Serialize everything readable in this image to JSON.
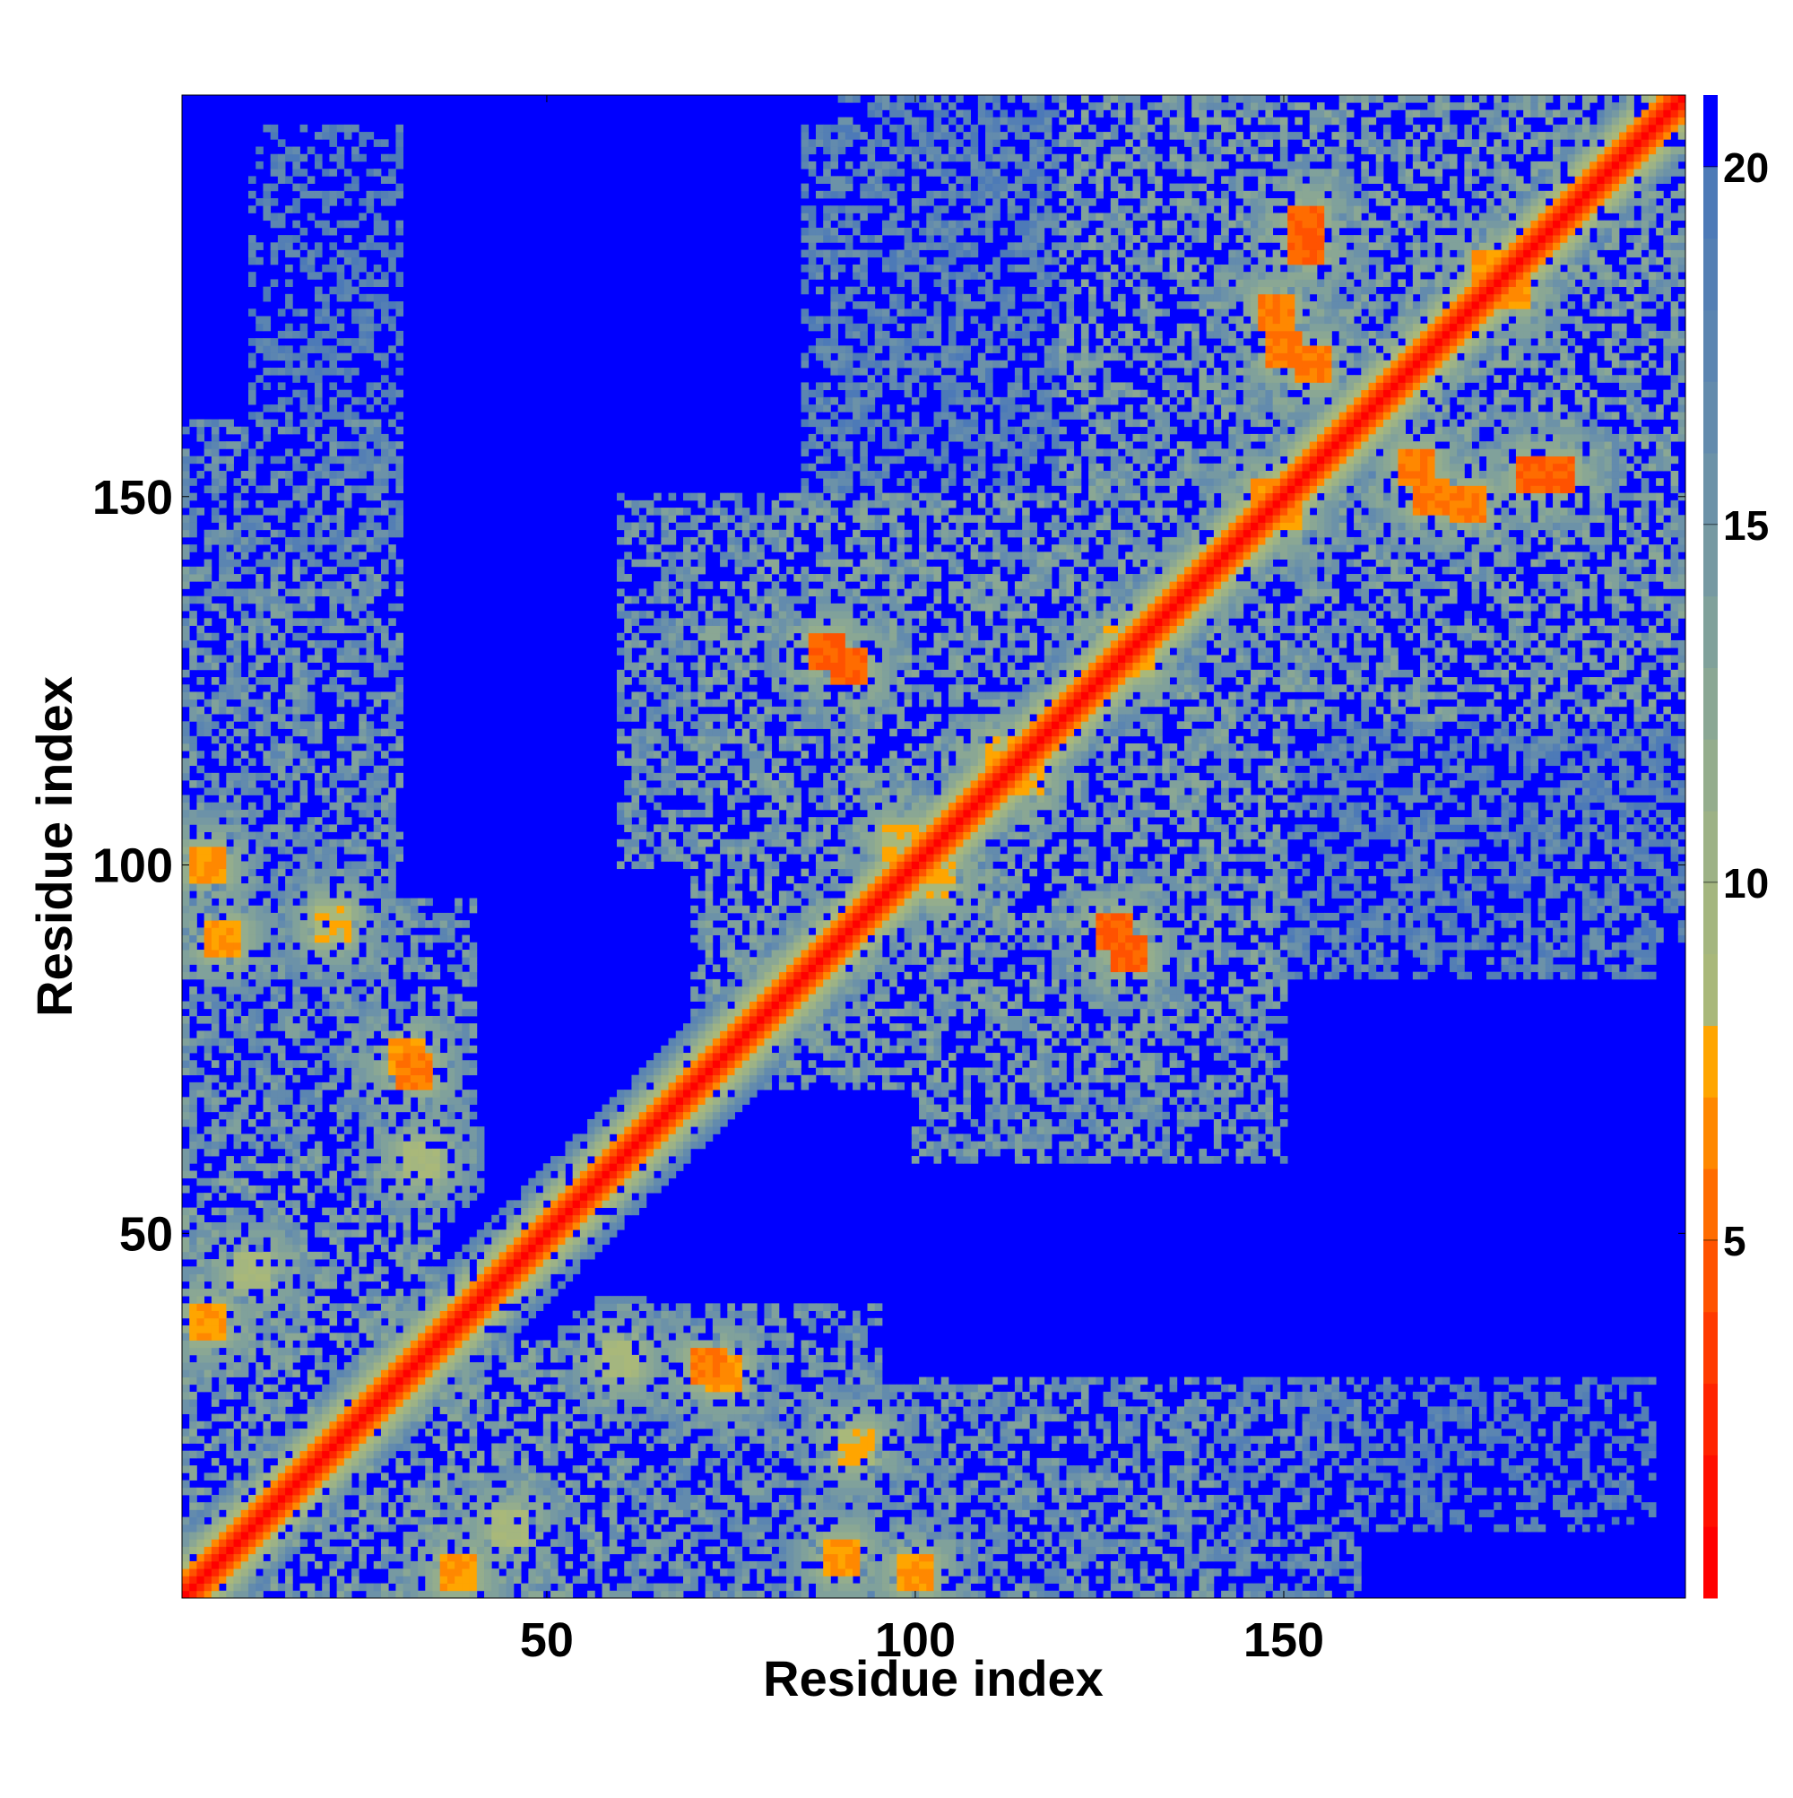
{
  "chart_data": {
    "type": "heatmap",
    "title": "",
    "xlabel": "Residue index",
    "ylabel": "Residue index",
    "xlim": [
      1,
      204
    ],
    "ylim": [
      1,
      204
    ],
    "x_ticks": [
      50,
      100,
      150
    ],
    "y_ticks": [
      50,
      100,
      150
    ],
    "x_tick_labels": [
      "50",
      "100",
      "150"
    ],
    "y_tick_labels": [
      "50",
      "100",
      "150"
    ],
    "n_residues": 204,
    "colorbar": {
      "range": [
        0,
        21
      ],
      "ticks": [
        5,
        10,
        15,
        20
      ],
      "tick_labels": [
        "5",
        "10",
        "15",
        "20"
      ],
      "levels": [
        {
          "max": 1,
          "color": "#ff0000"
        },
        {
          "max": 2,
          "color": "#ff1000"
        },
        {
          "max": 3,
          "color": "#ff2400"
        },
        {
          "max": 4,
          "color": "#ff3a00"
        },
        {
          "max": 5,
          "color": "#ff5200"
        },
        {
          "max": 6,
          "color": "#ff6c00"
        },
        {
          "max": 7,
          "color": "#ff8800"
        },
        {
          "max": 8,
          "color": "#ffa500"
        },
        {
          "max": 9,
          "color": "#a9b87a"
        },
        {
          "max": 10,
          "color": "#a4b67f"
        },
        {
          "max": 11,
          "color": "#9db286"
        },
        {
          "max": 12,
          "color": "#94ad8d"
        },
        {
          "max": 13,
          "color": "#8aa794"
        },
        {
          "max": 14,
          "color": "#80a19b"
        },
        {
          "max": 15,
          "color": "#7699a2"
        },
        {
          "max": 16,
          "color": "#6c92a8"
        },
        {
          "max": 17,
          "color": "#638bad"
        },
        {
          "max": 18,
          "color": "#5b85b1"
        },
        {
          "max": 19,
          "color": "#547fb4"
        },
        {
          "max": 20,
          "color": "#4d7ab7"
        },
        {
          "max": 21,
          "color": "#0000ff"
        }
      ]
    },
    "background_color": "#0000ff",
    "description_of_values": "Pairwise residue distance map, symmetric; values near 0 on the diagonal (red/orange), intermediate contacts (green-grey), large distances saturate at blue (>20).",
    "features": {
      "diagonal_band_width": 1.5,
      "contact_clusters": [
        {
          "x": 31,
          "y": 74,
          "v": 7
        },
        {
          "x": 21,
          "y": 92,
          "v": 8
        },
        {
          "x": 4,
          "y": 100,
          "v": 7
        },
        {
          "x": 4,
          "y": 38,
          "v": 7
        },
        {
          "x": 72,
          "y": 32,
          "v": 6
        },
        {
          "x": 90,
          "y": 6,
          "v": 7
        },
        {
          "x": 88,
          "y": 129,
          "v": 5
        },
        {
          "x": 127,
          "y": 91,
          "v": 5
        },
        {
          "x": 148,
          "y": 150,
          "v": 7
        },
        {
          "x": 153,
          "y": 184,
          "v": 5
        },
        {
          "x": 150,
          "y": 170,
          "v": 6
        },
        {
          "x": 168,
          "y": 154,
          "v": 6
        },
        {
          "x": 187,
          "y": 153,
          "v": 5
        },
        {
          "x": 175,
          "y": 149,
          "v": 6
        },
        {
          "x": 181,
          "y": 178,
          "v": 7
        },
        {
          "x": 128,
          "y": 130,
          "v": 8
        },
        {
          "x": 98,
          "y": 103,
          "v": 8
        },
        {
          "x": 115,
          "y": 112,
          "v": 8
        },
        {
          "x": 60,
          "y": 33,
          "v": 9
        },
        {
          "x": 45,
          "y": 10,
          "v": 9
        }
      ],
      "regions": [
        {
          "x0": 1,
          "x1": 35,
          "y0": 1,
          "y1": 60,
          "v": 13
        },
        {
          "x0": 1,
          "x1": 30,
          "y0": 60,
          "y1": 140,
          "v": 14
        },
        {
          "x0": 1,
          "x1": 30,
          "y0": 120,
          "y1": 160,
          "v": 15
        },
        {
          "x0": 60,
          "x1": 95,
          "y0": 1,
          "y1": 40,
          "v": 14
        },
        {
          "x0": 90,
          "x1": 140,
          "y0": 1,
          "y1": 30,
          "v": 15
        },
        {
          "x0": 80,
          "x1": 140,
          "y0": 70,
          "y1": 150,
          "v": 13
        },
        {
          "x0": 60,
          "x1": 110,
          "y0": 100,
          "y1": 150,
          "v": 14
        },
        {
          "x0": 120,
          "x1": 200,
          "y0": 120,
          "y1": 204,
          "v": 13
        },
        {
          "x0": 130,
          "x1": 200,
          "y0": 85,
          "y1": 125,
          "v": 16
        },
        {
          "x0": 90,
          "x1": 150,
          "y0": 150,
          "y1": 204,
          "v": 16
        },
        {
          "x0": 150,
          "x1": 200,
          "y0": 10,
          "y1": 30,
          "v": 17
        }
      ]
    }
  }
}
